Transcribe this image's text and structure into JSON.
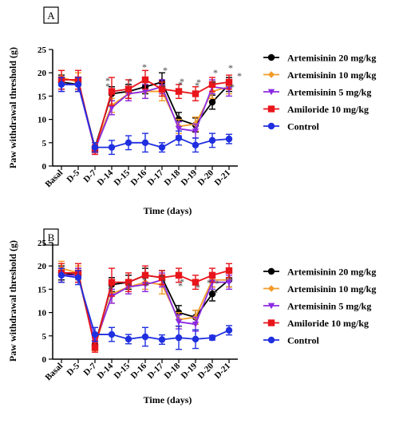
{
  "chart_data": [
    {
      "type": "line",
      "panel_label": "A",
      "xlabel": "Time (days)",
      "ylabel": "Paw withdrawal threshold (g)",
      "ylim": [
        0,
        25
      ],
      "yticks": [
        0,
        5,
        10,
        15,
        20,
        25
      ],
      "categories": [
        "Basal",
        "D-5",
        "D-7",
        "D-14",
        "D-15",
        "D-16",
        "D-17",
        "D-18",
        "D-19",
        "D-20",
        "D-21"
      ],
      "legend_position": "right",
      "series": [
        {
          "name": "Artemisinin 20 mg/kg",
          "color": "#000000",
          "marker": "circle",
          "values": [
            18.0,
            17.5,
            4.0,
            15.5,
            16.0,
            17.0,
            18.0,
            10.0,
            8.8,
            13.7,
            17.5
          ],
          "errors": [
            1.5,
            1.5,
            1.0,
            1.5,
            1.5,
            1.5,
            2.0,
            1.5,
            1.5,
            1.5,
            1.5
          ]
        },
        {
          "name": "Artemisinin 10 mg/kg",
          "color": "#f39c2a",
          "marker": "diamond",
          "values": [
            19.0,
            18.0,
            4.0,
            13.0,
            15.5,
            16.0,
            16.0,
            8.5,
            9.0,
            16.0,
            17.0
          ],
          "errors": [
            1.5,
            2.0,
            1.0,
            1.5,
            1.5,
            1.5,
            2.0,
            1.5,
            1.5,
            1.5,
            1.5
          ]
        },
        {
          "name": "Artemisinin 5 mg/kg",
          "color": "#8b2be2",
          "marker": "triangle-down",
          "values": [
            17.5,
            17.5,
            3.5,
            12.5,
            15.5,
            16.0,
            17.0,
            8.0,
            7.5,
            17.0,
            16.5
          ],
          "errors": [
            1.5,
            1.5,
            1.0,
            1.5,
            1.5,
            1.5,
            1.5,
            1.5,
            1.5,
            1.5,
            1.5
          ]
        },
        {
          "name": "Amiloride 10 mg/kg",
          "color": "#e8151b",
          "marker": "square",
          "values": [
            18.5,
            18.5,
            3.5,
            16.0,
            16.5,
            18.5,
            16.5,
            16.0,
            15.5,
            17.5,
            18.0
          ],
          "errors": [
            2.0,
            2.0,
            1.0,
            3.0,
            2.0,
            2.0,
            1.5,
            1.5,
            1.5,
            1.5,
            1.5
          ]
        },
        {
          "name": "Control",
          "color": "#1f2fe0",
          "marker": "circle",
          "values": [
            17.5,
            17.5,
            4.0,
            4.0,
            5.0,
            5.0,
            4.0,
            6.0,
            4.5,
            5.5,
            5.8
          ],
          "errors": [
            1.5,
            1.5,
            1.0,
            1.5,
            1.5,
            2.0,
            1.0,
            1.5,
            1.5,
            1.5,
            1.0
          ]
        }
      ],
      "annotations": [
        "*",
        "*",
        "*",
        "*",
        "*",
        "*",
        "*",
        "*",
        "*",
        "*",
        "*",
        "*",
        "*",
        "*",
        "*",
        "*"
      ]
    },
    {
      "type": "line",
      "panel_label": "B",
      "xlabel": "Time (days)",
      "ylabel": "Paw withdrawal threshold (g)",
      "ylim": [
        0,
        25
      ],
      "yticks": [
        0,
        5,
        10,
        15,
        20,
        25
      ],
      "categories": [
        "Basal",
        "D-5",
        "D-7",
        "D-14",
        "D-15",
        "D-16",
        "D-17",
        "D-18",
        "D-19",
        "D-20",
        "D-21"
      ],
      "legend_position": "right",
      "series": [
        {
          "name": "Artemisinin 20 mg/kg",
          "color": "#000000",
          "marker": "circle",
          "values": [
            18.5,
            18.0,
            3.0,
            16.0,
            16.5,
            18.0,
            17.5,
            10.0,
            9.0,
            14.0,
            17.0
          ],
          "errors": [
            1.5,
            1.5,
            1.0,
            1.5,
            1.5,
            1.5,
            1.5,
            1.5,
            1.5,
            1.5,
            1.5
          ]
        },
        {
          "name": "Artemisinin 10 mg/kg",
          "color": "#f39c2a",
          "marker": "diamond",
          "values": [
            19.5,
            18.5,
            2.8,
            14.0,
            15.5,
            16.5,
            16.0,
            8.5,
            9.0,
            17.0,
            17.0
          ],
          "errors": [
            1.5,
            1.5,
            1.0,
            2.0,
            1.5,
            1.5,
            2.0,
            1.5,
            1.5,
            1.5,
            1.5
          ]
        },
        {
          "name": "Artemisinin 5 mg/kg",
          "color": "#8b2be2",
          "marker": "triangle-down",
          "values": [
            18.0,
            18.0,
            3.5,
            13.5,
            15.5,
            16.0,
            17.0,
            8.0,
            7.5,
            16.5,
            16.5
          ],
          "errors": [
            1.5,
            1.5,
            1.0,
            1.5,
            1.5,
            1.5,
            1.5,
            1.5,
            1.5,
            1.5,
            1.5
          ]
        },
        {
          "name": "Amiloride 10 mg/kg",
          "color": "#e8151b",
          "marker": "square",
          "values": [
            18.5,
            18.5,
            2.5,
            16.5,
            16.5,
            18.0,
            17.5,
            18.0,
            16.5,
            18.0,
            19.0
          ],
          "errors": [
            2.0,
            2.0,
            1.0,
            3.0,
            2.0,
            2.0,
            1.5,
            1.5,
            1.5,
            1.5,
            1.5
          ]
        },
        {
          "name": "Control",
          "color": "#1f2fe0",
          "marker": "circle",
          "values": [
            18.0,
            17.5,
            5.3,
            5.3,
            4.3,
            4.8,
            4.2,
            4.6,
            4.3,
            4.6,
            6.2
          ],
          "errors": [
            1.5,
            1.5,
            1.5,
            1.5,
            1.0,
            2.0,
            1.0,
            2.5,
            2.0,
            0.5,
            1.0
          ]
        }
      ],
      "annotations": [
        "*",
        "*",
        "*",
        "*",
        "*",
        "*",
        "*",
        "*",
        "*",
        "*",
        "*",
        "*",
        "*"
      ]
    }
  ]
}
